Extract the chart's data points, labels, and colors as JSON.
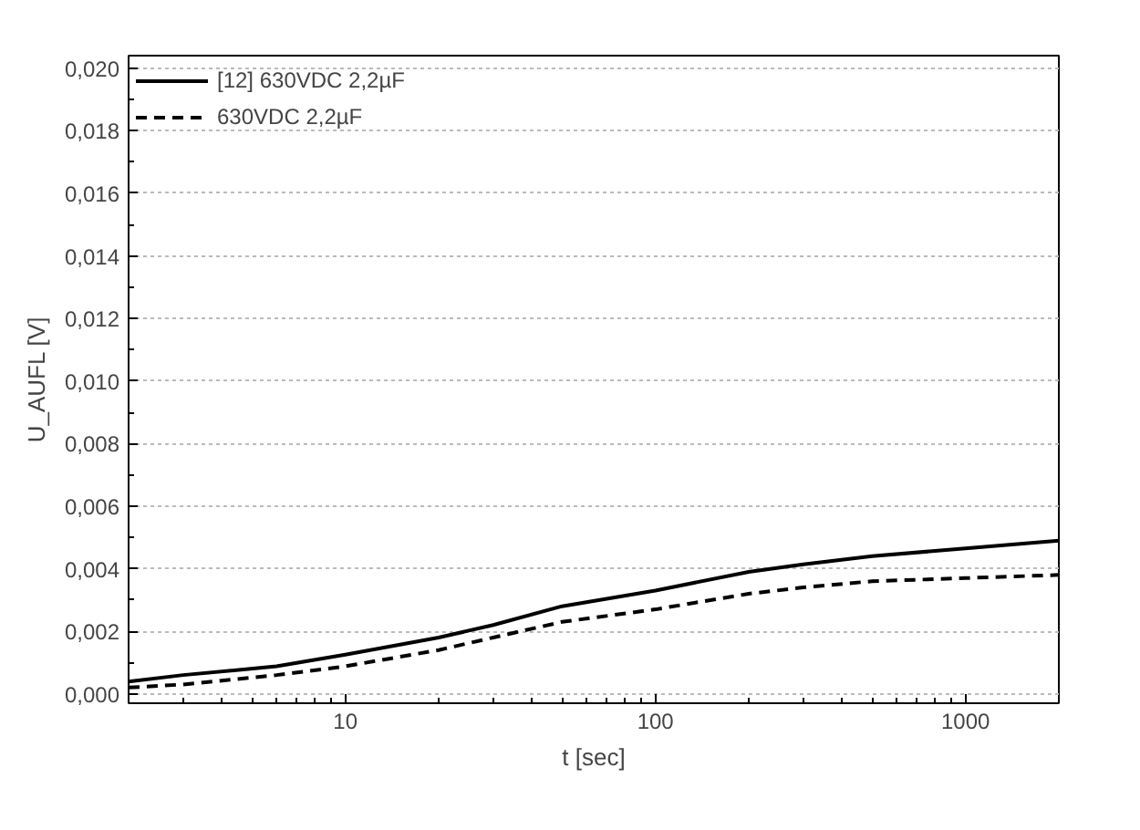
{
  "chart_data": {
    "type": "line",
    "xlabel": "t [sec]",
    "ylabel": "U_AUFL [V]",
    "log": "x",
    "xlim": [
      2,
      2000
    ],
    "xticks": [
      10,
      100,
      1000
    ],
    "ylim": [
      -0.0003,
      0.0204
    ],
    "yticks": [
      {
        "value": 0,
        "label": "0,000"
      },
      {
        "value": 0.002,
        "label": "0,002"
      },
      {
        "value": 0.004,
        "label": "0,004"
      },
      {
        "value": 0.006,
        "label": "0,006"
      },
      {
        "value": 0.008,
        "label": "0,008"
      },
      {
        "value": 0.01,
        "label": "0,010"
      },
      {
        "value": 0.012,
        "label": "0,012"
      },
      {
        "value": 0.014,
        "label": "0,014"
      },
      {
        "value": 0.016,
        "label": "0,016"
      },
      {
        "value": 0.018,
        "label": "0,018"
      },
      {
        "value": 0.02,
        "label": "0,020"
      }
    ],
    "grid": "y",
    "legend": "top left",
    "marker": "none",
    "x": [
      2,
      3,
      6,
      10,
      20,
      30,
      50,
      100,
      200,
      300,
      500,
      1000,
      2000
    ],
    "series": [
      {
        "name": "[12] 630VDC 2,2µF",
        "color": "#000000",
        "line_style": "solid",
        "values": [
          0.00039,
          0.0006,
          0.00088,
          0.00125,
          0.0018,
          0.0022,
          0.0028,
          0.0033,
          0.0039,
          0.00414,
          0.0044,
          0.00465,
          0.0049
        ]
      },
      {
        "name": "630VDC 2,2µF",
        "color": "#000000",
        "line_style": "dashed",
        "values": [
          0.0002,
          0.0003,
          0.0006,
          0.00088,
          0.0014,
          0.0018,
          0.0023,
          0.0027,
          0.0032,
          0.0034,
          0.0036,
          0.0037,
          0.0038
        ]
      }
    ]
  }
}
